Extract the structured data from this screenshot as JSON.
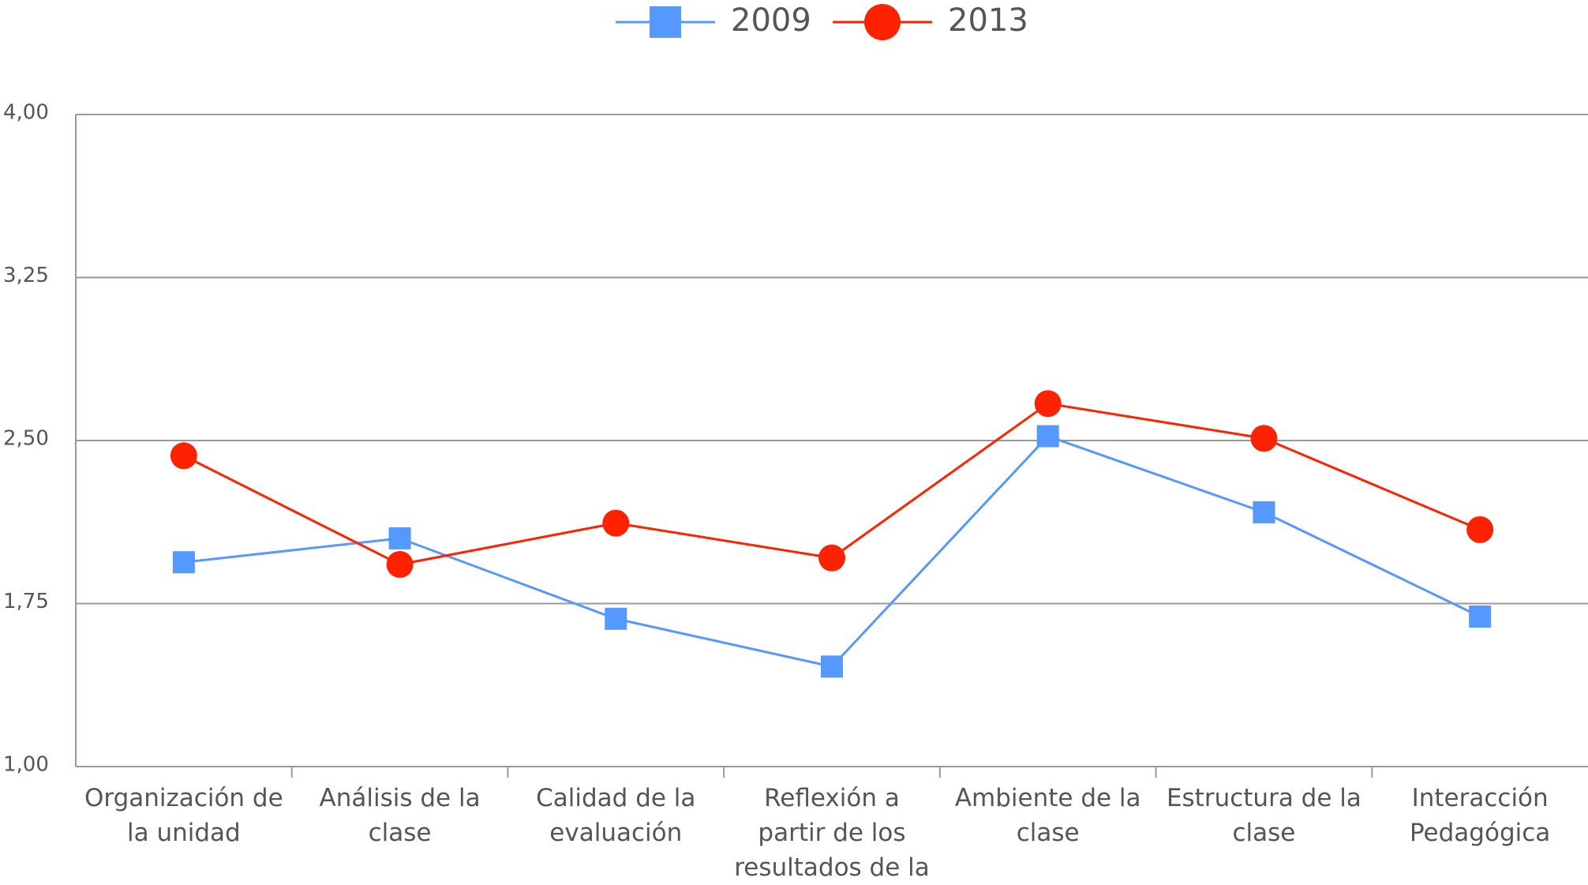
{
  "chart_data": {
    "type": "line",
    "categories": [
      "Organización de la unidad",
      "Análisis de la clase",
      "Calidad de la evaluación",
      "Reflexión a partir de los resultados de la evaluación",
      "Ambiente de la clase",
      "Estructura de la clase",
      "Interacción Pedagógica"
    ],
    "series": [
      {
        "name": "2009",
        "color": "#5599ff",
        "marker": "square",
        "values": [
          1.94,
          2.05,
          1.68,
          1.46,
          2.52,
          2.17,
          1.69
        ]
      },
      {
        "name": "2013",
        "color": "#ff2200",
        "marker": "circle",
        "values": [
          2.43,
          1.93,
          2.12,
          1.96,
          2.67,
          2.51,
          2.09
        ]
      }
    ],
    "ylim": [
      1,
      4
    ],
    "yticks": [
      {
        "value": 1,
        "label": "1,00"
      },
      {
        "value": 1.75,
        "label": "1,75"
      },
      {
        "value": 2.5,
        "label": "2,50"
      },
      {
        "value": 3.25,
        "label": "3,25"
      },
      {
        "value": 4,
        "label": "4,00"
      }
    ],
    "grid": true,
    "legend": "top"
  }
}
